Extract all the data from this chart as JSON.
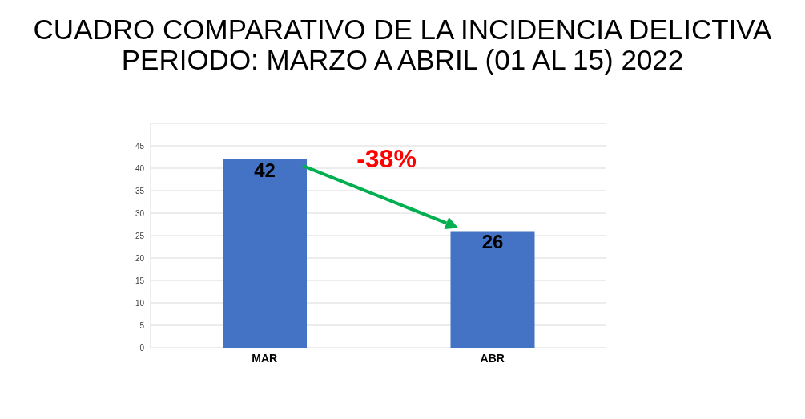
{
  "chart_data": {
    "type": "bar",
    "title": "CUADRO COMPARATIVO DE LA INCIDENCIA DELICTIVA",
    "subtitle": "PERIODO: MARZO A ABRIL (01 AL 15) 2022",
    "categories": [
      "MAR",
      "ABR"
    ],
    "values": [
      42,
      26
    ],
    "color": "#4472c4",
    "ylim": [
      0,
      50
    ],
    "yticks": [
      0,
      5,
      10,
      15,
      20,
      25,
      30,
      35,
      40,
      45
    ],
    "grid": "y",
    "data_labels": true,
    "annotations": [
      "-38%"
    ]
  }
}
